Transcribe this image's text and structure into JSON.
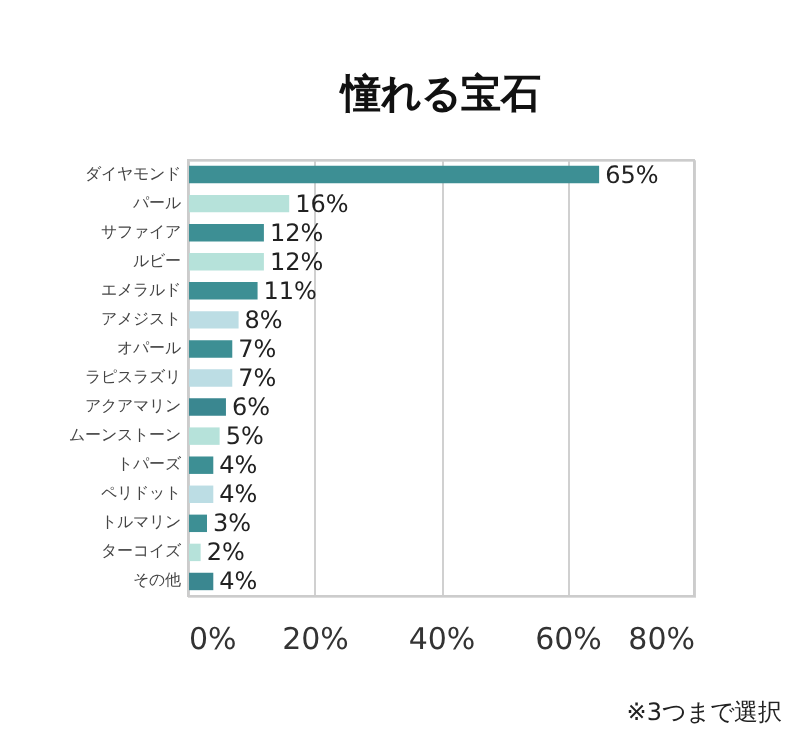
{
  "chart_data": {
    "type": "bar",
    "orientation": "horizontal",
    "title": "憧れる宝石",
    "categories": [
      "ダイヤモンド",
      "パール",
      "サファイア",
      "ルビー",
      "エメラルド",
      "アメジスト",
      "オパール",
      "ラピスラズリ",
      "アクアマリン",
      "ムーンストーン",
      "トパーズ",
      "ペリドット",
      "トルマリン",
      "ターコイズ",
      "その他"
    ],
    "values": [
      65,
      16,
      12,
      12,
      11,
      8,
      7,
      7,
      6,
      5,
      4,
      4,
      3,
      2,
      4
    ],
    "value_labels": [
      "65%",
      "16%",
      "12%",
      "12%",
      "11%",
      "8%",
      "7%",
      "7%",
      "6%",
      "5%",
      "4%",
      "4%",
      "3%",
      "2%",
      "4%"
    ],
    "colors": [
      "#3d8f94",
      "#b6e2da",
      "#3d8f94",
      "#b6e2da",
      "#3d8f94",
      "#bcdde4",
      "#3d8f94",
      "#bcdde4",
      "#3a8790",
      "#b6e2da",
      "#3d8f94",
      "#bcdde4",
      "#3d8f94",
      "#b6e2da",
      "#3a8790"
    ],
    "xlim": [
      0,
      80
    ],
    "xticks": [
      {
        "value": 0,
        "label": "0%"
      },
      {
        "value": 20,
        "label": "20%"
      },
      {
        "value": 40,
        "label": "40%"
      },
      {
        "value": 60,
        "label": "60%"
      },
      {
        "value": 80,
        "label": "80%"
      }
    ],
    "grid": "x",
    "annotations": [
      "※3つまで選択"
    ]
  }
}
